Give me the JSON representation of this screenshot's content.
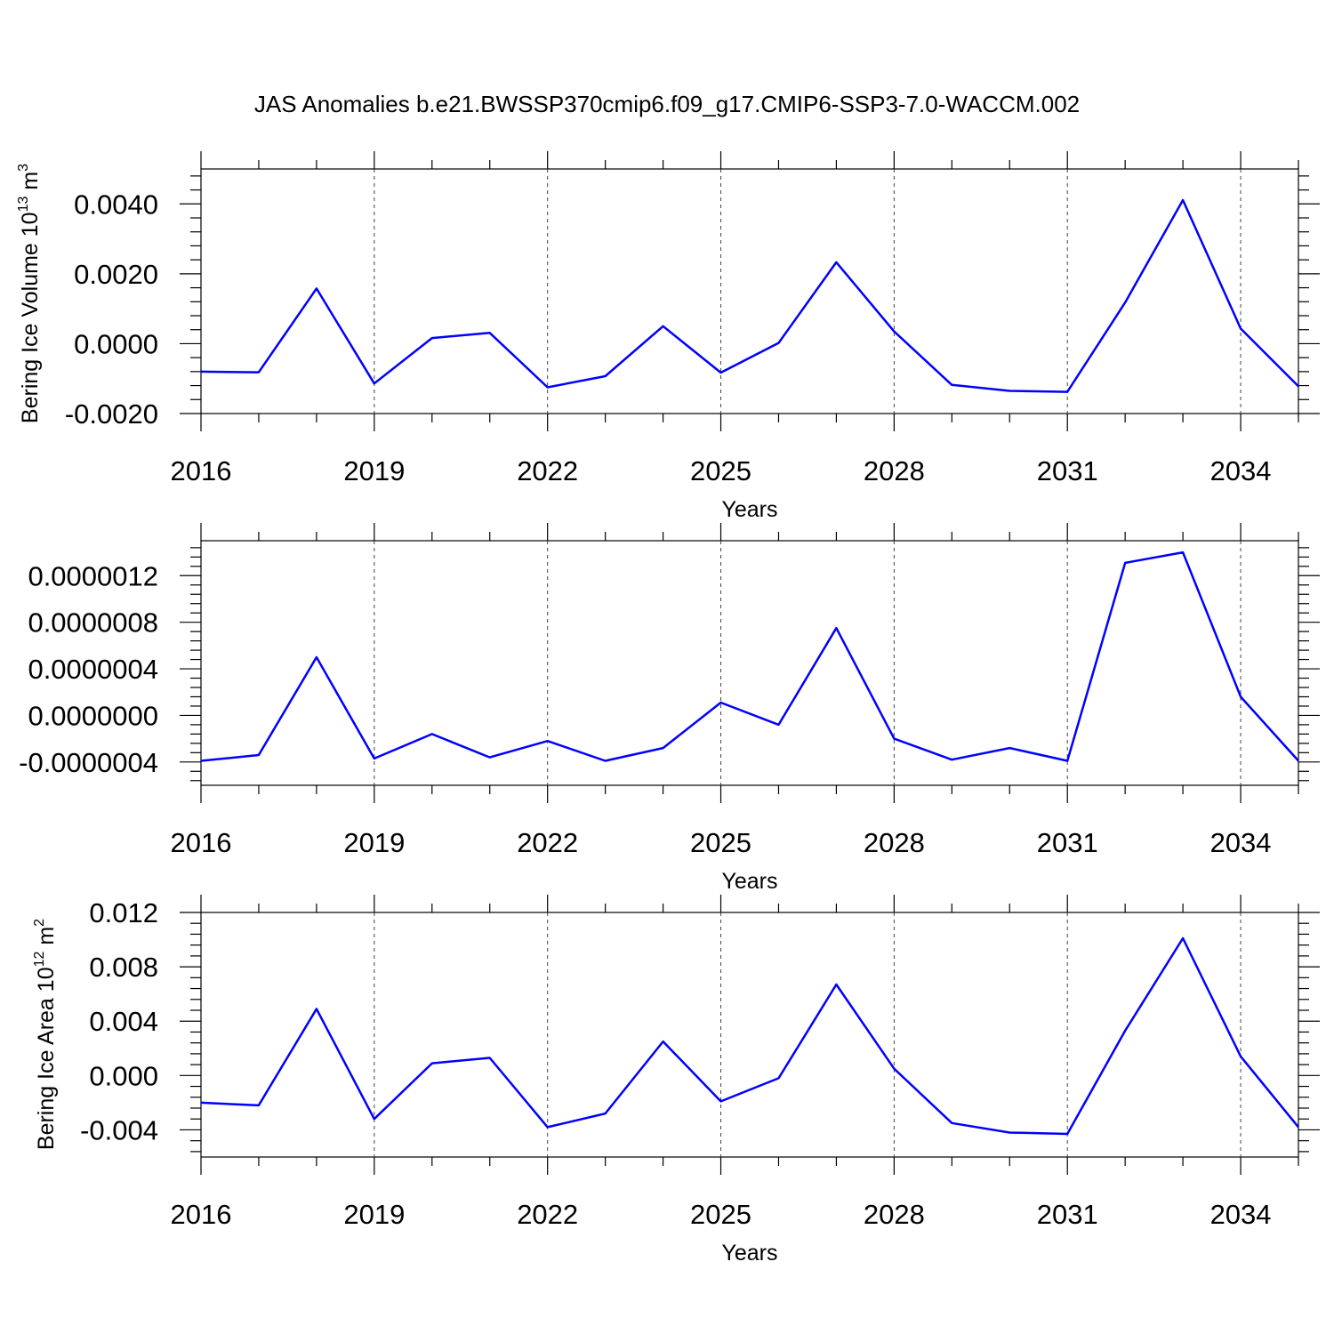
{
  "title": "JAS Anomalies b.e21.BWSSP370cmip6.f09_g17.CMIP6-SSP3-7.0-WACCM.002",
  "colors": {
    "line": "#0000ff",
    "axis": "#000000",
    "grid": "#444444"
  },
  "chart_data": [
    {
      "type": "line",
      "xlabel": "Years",
      "ylabel": "Bering Ice Volume 10",
      "ylabel_exp": "13",
      "ylabel_unit": " m",
      "ylabel_unit_exp": "3",
      "xlim": [
        2016,
        2035
      ],
      "ylim": [
        -0.002,
        0.005
      ],
      "xticks": [
        2016,
        2019,
        2022,
        2025,
        2028,
        2031,
        2034
      ],
      "xtick_labels": [
        "2016",
        "2019",
        "2022",
        "2025",
        "2028",
        "2031",
        "2034"
      ],
      "yticks": [
        -0.002,
        0.0,
        0.002,
        0.004
      ],
      "ytick_labels": [
        "-0.0020",
        "0.0000",
        "0.0020",
        "0.0040"
      ],
      "grid": "vertical dashed at major x ticks",
      "series": [
        {
          "x": [
            2016,
            2017,
            2018,
            2019,
            2020,
            2021,
            2022,
            2023,
            2024,
            2025,
            2026,
            2027,
            2028,
            2029,
            2030,
            2031,
            2032,
            2033,
            2034,
            2035
          ],
          "values": [
            -0.0008,
            -0.00082,
            0.00158,
            -0.00114,
            0.00016,
            0.00031,
            -0.00125,
            -0.00093,
            0.0005,
            -0.00083,
            2e-05,
            0.00233,
            0.00035,
            -0.00118,
            -0.00135,
            -0.00138,
            0.00118,
            0.00411,
            0.00043,
            -0.00122
          ]
        }
      ]
    },
    {
      "type": "line",
      "xlabel": "Years",
      "ylabel": "",
      "xlim": [
        2016,
        2035
      ],
      "ylim": [
        -6e-07,
        1.5e-06
      ],
      "xticks": [
        2016,
        2019,
        2022,
        2025,
        2028,
        2031,
        2034
      ],
      "xtick_labels": [
        "2016",
        "2019",
        "2022",
        "2025",
        "2028",
        "2031",
        "2034"
      ],
      "yticks": [
        -4e-07,
        0.0,
        4e-07,
        8e-07,
        1.2e-06
      ],
      "ytick_labels": [
        "-0.0000004",
        "0.0000000",
        "0.0000004",
        "0.0000008",
        "0.0000012"
      ],
      "grid": "vertical dashed at major x ticks",
      "series": [
        {
          "x": [
            2016,
            2017,
            2018,
            2019,
            2020,
            2021,
            2022,
            2023,
            2024,
            2025,
            2026,
            2027,
            2028,
            2029,
            2030,
            2031,
            2032,
            2033,
            2034,
            2035
          ],
          "values": [
            -3.9e-07,
            -3.4e-07,
            5e-07,
            -3.7e-07,
            -1.6e-07,
            -3.6e-07,
            -2.2e-07,
            -3.9e-07,
            -2.8e-07,
            1.1e-07,
            -8e-08,
            7.5e-07,
            -2e-07,
            -3.8e-07,
            -2.8e-07,
            -3.9e-07,
            1.31e-06,
            1.4e-06,
            1.6e-07,
            -3.9e-07
          ]
        }
      ]
    },
    {
      "type": "line",
      "xlabel": "Years",
      "ylabel": "Bering Ice Area 10",
      "ylabel_exp": "12",
      "ylabel_unit": " m",
      "ylabel_unit_exp": "2",
      "xlim": [
        2016,
        2035
      ],
      "ylim": [
        -0.006,
        0.012
      ],
      "xticks": [
        2016,
        2019,
        2022,
        2025,
        2028,
        2031,
        2034
      ],
      "xtick_labels": [
        "2016",
        "2019",
        "2022",
        "2025",
        "2028",
        "2031",
        "2034"
      ],
      "yticks": [
        -0.004,
        0.0,
        0.004,
        0.008,
        0.012
      ],
      "ytick_labels": [
        "-0.004",
        "0.000",
        "0.004",
        "0.008",
        "0.012"
      ],
      "grid": "vertical dashed at major x ticks",
      "series": [
        {
          "x": [
            2016,
            2017,
            2018,
            2019,
            2020,
            2021,
            2022,
            2023,
            2024,
            2025,
            2026,
            2027,
            2028,
            2029,
            2030,
            2031,
            2032,
            2033,
            2034,
            2035
          ],
          "values": [
            -0.002,
            -0.0022,
            0.0049,
            -0.0032,
            0.0009,
            0.0013,
            -0.0038,
            -0.0028,
            0.0025,
            -0.0019,
            -0.0002,
            0.0067,
            0.0005,
            -0.0035,
            -0.0042,
            -0.0043,
            0.0033,
            0.0101,
            0.0014,
            -0.0038
          ]
        }
      ]
    }
  ]
}
